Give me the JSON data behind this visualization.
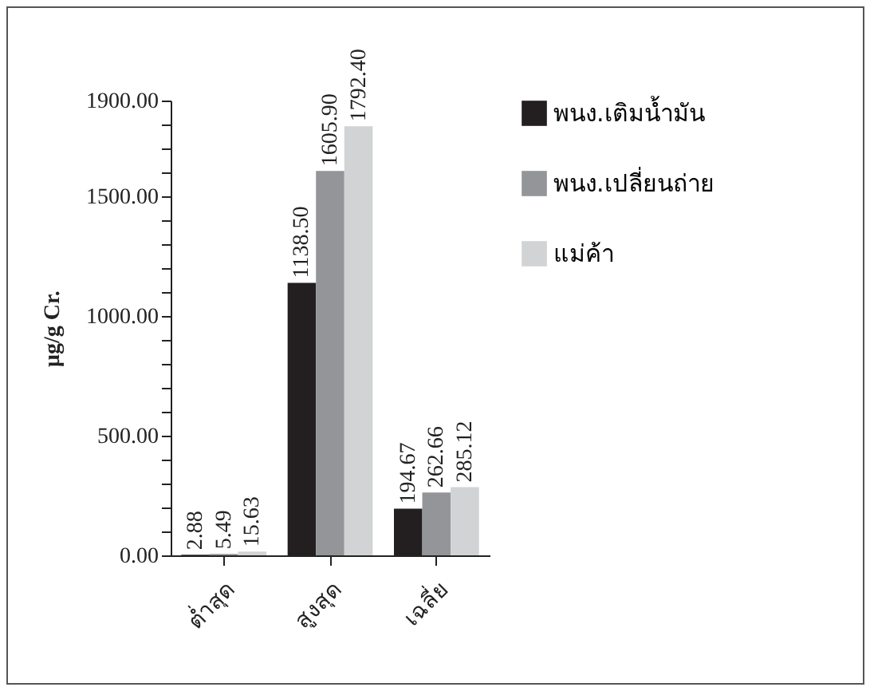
{
  "chart_data": {
    "type": "bar",
    "categories": [
      "ต่ำสุด",
      "สูงสุด",
      "เฉลี่ย"
    ],
    "series": [
      {
        "name": "พนง.เติมน้ำมัน",
        "color": "#231f20",
        "values": [
          2.88,
          1138.5,
          194.67
        ],
        "value_labels": [
          "2.88",
          "1138.50",
          "194.67"
        ]
      },
      {
        "name": "พนง.เปลี่ยนถ่าย",
        "color": "#939598",
        "values": [
          5.49,
          1605.9,
          262.66
        ],
        "value_labels": [
          "5.49",
          "1605.90",
          "262.66"
        ]
      },
      {
        "name": "แม่ค้า",
        "color": "#d1d3d4",
        "values": [
          15.63,
          1792.4,
          285.12
        ],
        "value_labels": [
          "15.63",
          "1792.40",
          "285.12"
        ]
      }
    ],
    "ylabel": "μg/g Cr.",
    "ylim": [
      0,
      1900
    ],
    "yticks": [
      {
        "value": 0,
        "label": "0.00"
      },
      {
        "value": 100,
        "label": null
      },
      {
        "value": 200,
        "label": null
      },
      {
        "value": 300,
        "label": null
      },
      {
        "value": 400,
        "label": null
      },
      {
        "value": 500,
        "label": "500.00"
      },
      {
        "value": 600,
        "label": null
      },
      {
        "value": 700,
        "label": null
      },
      {
        "value": 800,
        "label": null
      },
      {
        "value": 900,
        "label": null
      },
      {
        "value": 1000,
        "label": "1000.00"
      },
      {
        "value": 1100,
        "label": null
      },
      {
        "value": 1200,
        "label": null
      },
      {
        "value": 1300,
        "label": null
      },
      {
        "value": 1400,
        "label": null
      },
      {
        "value": 1500,
        "label": "1500.00"
      },
      {
        "value": 1600,
        "label": null
      },
      {
        "value": 1700,
        "label": null
      },
      {
        "value": 1800,
        "label": null
      },
      {
        "value": 1900,
        "label": "1900.00"
      }
    ],
    "grid": false,
    "legend": "right"
  }
}
